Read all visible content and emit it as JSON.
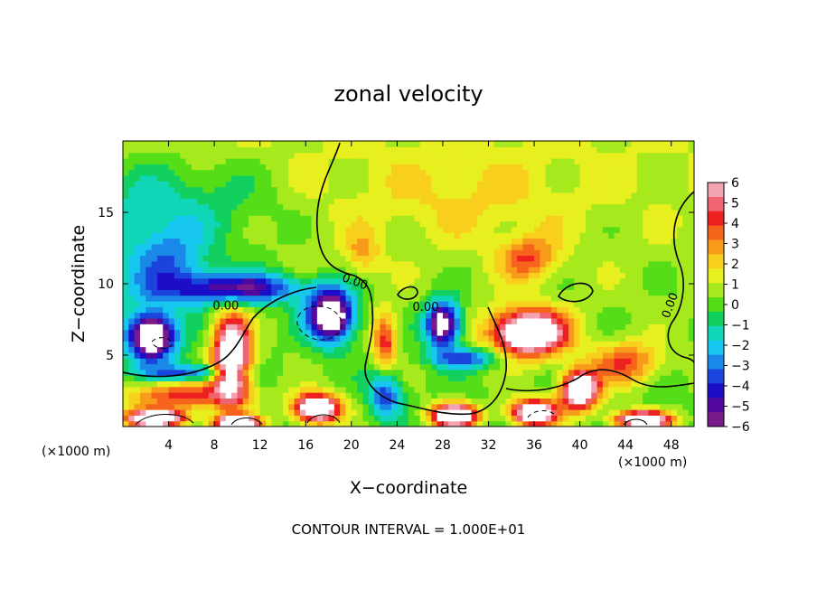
{
  "chart_data": {
    "type": "heatmap",
    "title": "zonal velocity",
    "xlabel": "X−coordinate",
    "ylabel": "Z−coordinate",
    "x_unit_left": "(×1000 m)",
    "x_unit_right": "(×1000 m)",
    "footnote": "CONTOUR INTERVAL = 1.000E+01",
    "xlim": [
      0,
      50
    ],
    "ylim": [
      0,
      20
    ],
    "x_ticks": [
      4,
      8,
      12,
      16,
      20,
      24,
      28,
      32,
      36,
      40,
      44,
      48
    ],
    "x_tick_labels": [
      "4",
      "8",
      "12",
      "16",
      "20",
      "24",
      "28",
      "32",
      "36",
      "40",
      "44",
      "48"
    ],
    "y_ticks": [
      5,
      10,
      15
    ],
    "y_tick_labels": [
      "5",
      "10",
      "15"
    ],
    "colorbar": {
      "min": -6,
      "max": 6,
      "ticks": [
        6,
        5,
        4,
        3,
        2,
        1,
        0,
        -1,
        -2,
        -3,
        -4,
        -5,
        -6
      ],
      "tick_labels": [
        "6",
        "5",
        "4",
        "3",
        "2",
        "1",
        "0",
        "−1",
        "−2",
        "−3",
        "−4",
        "−5",
        "−6"
      ],
      "colors": [
        "#f4a3b3",
        "#f06472",
        "#ee2020",
        "#f5641a",
        "#f89b1a",
        "#f8cf1c",
        "#e8ef1e",
        "#a6ea1e",
        "#55dd18",
        "#12d060",
        "#10d6b8",
        "#16c6ee",
        "#1a88e8",
        "#1b44dc",
        "#1c0ec8",
        "#52089c",
        "#7a1a8a"
      ]
    },
    "contour_labels": [
      {
        "text": "0.00",
        "x": 20.2,
        "y": 9.9
      },
      {
        "text": "0.00",
        "x": 9.0,
        "y": 8.2
      },
      {
        "text": "0.00",
        "x": 26.5,
        "y": 8.1
      },
      {
        "text": "0.00",
        "x": 48.2,
        "y": 8.4
      }
    ],
    "field_features": [
      {
        "kind": "high",
        "x": 2.5,
        "y": 6.3,
        "sx": 2.0,
        "sy": 1.6,
        "v": -9
      },
      {
        "kind": "high",
        "x": 9.5,
        "y": 4.8,
        "sx": 1.6,
        "sy": 3.0,
        "v": 9
      },
      {
        "kind": "high",
        "x": 18.2,
        "y": 7.8,
        "sx": 2.0,
        "sy": 1.8,
        "v": -9
      },
      {
        "kind": "high",
        "x": 28.0,
        "y": 7.2,
        "sx": 1.5,
        "sy": 1.6,
        "v": -8
      },
      {
        "kind": "high",
        "x": 35.5,
        "y": 6.6,
        "sx": 3.2,
        "sy": 1.6,
        "v": 9
      },
      {
        "kind": "high",
        "x": 40.0,
        "y": 2.6,
        "sx": 1.6,
        "sy": 1.3,
        "v": 9
      },
      {
        "kind": "high",
        "x": 17.0,
        "y": 1.3,
        "sx": 2.0,
        "sy": 1.0,
        "v": 9
      },
      {
        "kind": "high",
        "x": 29.0,
        "y": 0.8,
        "sx": 2.0,
        "sy": 0.8,
        "v": 9
      },
      {
        "kind": "high",
        "x": 36.0,
        "y": 1.0,
        "sx": 2.0,
        "sy": 0.9,
        "v": 9
      },
      {
        "kind": "high",
        "x": 45.5,
        "y": 0.5,
        "sx": 2.4,
        "sy": 0.6,
        "v": 9
      },
      {
        "kind": "high",
        "x": 2.8,
        "y": 0.6,
        "sx": 2.6,
        "sy": 0.6,
        "v": 9
      },
      {
        "kind": "high",
        "x": 10.0,
        "y": 0.3,
        "sx": 2.0,
        "sy": 0.5,
        "v": 9
      },
      {
        "kind": "low",
        "x": 10.0,
        "y": 9.7,
        "sx": 6.0,
        "sy": 1.1,
        "v": -5.5
      },
      {
        "kind": "low",
        "x": 4.0,
        "y": 11.5,
        "sx": 3.0,
        "sy": 2.5,
        "v": -2.5
      },
      {
        "kind": "low",
        "x": 23.0,
        "y": 2.3,
        "sx": 1.4,
        "sy": 1.6,
        "v": -4
      },
      {
        "kind": "low",
        "x": 6.0,
        "y": 3.8,
        "sx": 4.0,
        "sy": 0.6,
        "v": -4
      },
      {
        "kind": "low",
        "x": 30.0,
        "y": 4.8,
        "sx": 3.0,
        "sy": 0.7,
        "v": -4
      },
      {
        "kind": "mid",
        "x": 35.5,
        "y": 11.8,
        "sx": 2.5,
        "sy": 1.5,
        "v": 3.2
      },
      {
        "kind": "mid",
        "x": 21.0,
        "y": 12.2,
        "sx": 1.5,
        "sy": 1.5,
        "v": 2.0
      },
      {
        "kind": "mid",
        "x": 23.0,
        "y": 6.0,
        "sx": 1.0,
        "sy": 2.0,
        "v": 4.0
      },
      {
        "kind": "mid",
        "x": 5.0,
        "y": 2.2,
        "sx": 5.0,
        "sy": 1.0,
        "v": 4.0
      },
      {
        "kind": "mid",
        "x": 44.0,
        "y": 4.5,
        "sx": 3.0,
        "sy": 1.5,
        "v": 3.5
      },
      {
        "kind": "bg",
        "x": 30.0,
        "y": 16.0,
        "sx": 10.0,
        "sy": 3.0,
        "v": 1.0
      },
      {
        "kind": "bg",
        "x": 5.0,
        "y": 16.0,
        "sx": 8.0,
        "sy": 3.0,
        "v": -1.4
      }
    ]
  }
}
